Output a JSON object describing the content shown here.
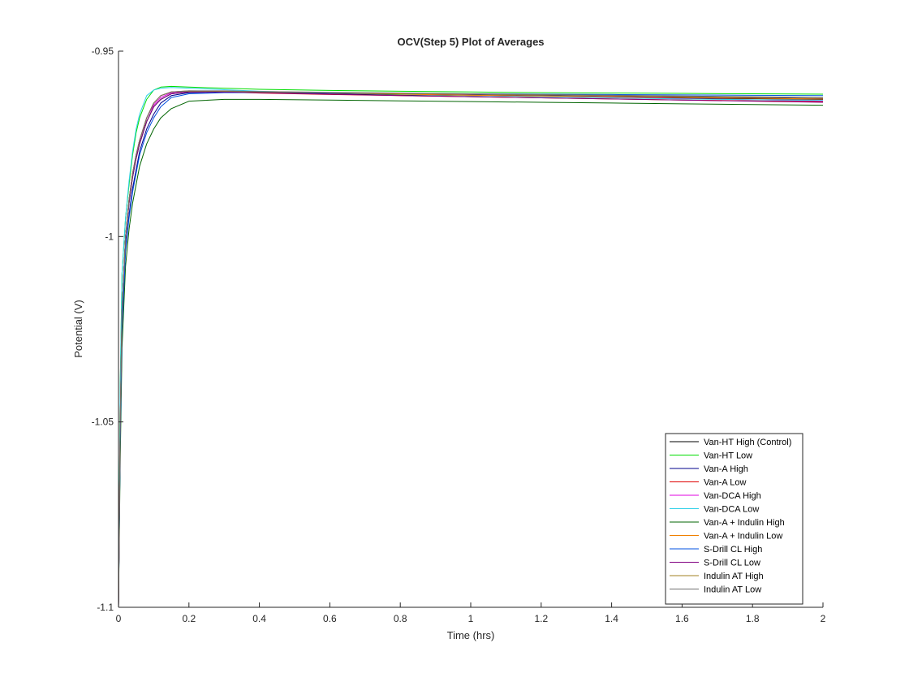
{
  "chart_data": {
    "type": "line",
    "title": "OCV(Step 5) Plot of Averages",
    "xlabel": "Time (hrs)",
    "ylabel": "Potential (V)",
    "xlim": [
      0,
      2
    ],
    "ylim": [
      -1.1,
      -0.95
    ],
    "x_ticks": [
      0,
      0.2,
      0.4,
      0.6,
      0.8,
      1,
      1.2,
      1.4,
      1.6,
      1.8,
      2
    ],
    "x_tick_labels": [
      "0",
      "0.2",
      "0.4",
      "0.6",
      "0.8",
      "1",
      "1.2",
      "1.4",
      "1.6",
      "1.8",
      "2"
    ],
    "y_ticks": [
      -1.1,
      -1.05,
      -1,
      -0.95
    ],
    "y_tick_labels": [
      "-1.1",
      "-1.05",
      "-1",
      "-0.95"
    ],
    "grid": false,
    "legend_position": "bottom-right",
    "x": [
      0,
      0.005,
      0.01,
      0.02,
      0.03,
      0.04,
      0.05,
      0.06,
      0.08,
      0.1,
      0.12,
      0.15,
      0.2,
      0.3,
      0.4,
      0.6,
      0.8,
      1.0,
      1.2,
      1.4,
      1.6,
      1.8,
      2.0
    ],
    "series": [
      {
        "name": "Van-HT High (Control)",
        "color": "#000000",
        "values": [
          -1.1,
          -1.05,
          -1.02,
          -1.0,
          -0.991,
          -0.984,
          -0.979,
          -0.975,
          -0.969,
          -0.965,
          -0.963,
          -0.9615,
          -0.961,
          -0.961,
          -0.9612,
          -0.9615,
          -0.9618,
          -0.962,
          -0.9622,
          -0.9625,
          -0.9627,
          -0.9628,
          -0.963
        ]
      },
      {
        "name": "Van-HT Low",
        "color": "#00dd00",
        "values": [
          -1.1,
          -1.04,
          -1.01,
          -0.995,
          -0.986,
          -0.978,
          -0.972,
          -0.968,
          -0.963,
          -0.9605,
          -0.9597,
          -0.9595,
          -0.9597,
          -0.96,
          -0.9603,
          -0.9606,
          -0.9608,
          -0.961,
          -0.9612,
          -0.9613,
          -0.9614,
          -0.9615,
          -0.9616
        ]
      },
      {
        "name": "Van-A High",
        "color": "#00008b",
        "values": [
          -1.1,
          -1.055,
          -1.025,
          -1.003,
          -0.994,
          -0.987,
          -0.982,
          -0.977,
          -0.971,
          -0.967,
          -0.964,
          -0.962,
          -0.9612,
          -0.961,
          -0.9612,
          -0.9614,
          -0.9616,
          -0.9618,
          -0.962,
          -0.9622,
          -0.9624,
          -0.9626,
          -0.9628
        ]
      },
      {
        "name": "Van-A Low",
        "color": "#e00000",
        "values": [
          -1.1,
          -1.05,
          -1.02,
          -1.0,
          -0.99,
          -0.983,
          -0.978,
          -0.974,
          -0.968,
          -0.964,
          -0.962,
          -0.961,
          -0.9608,
          -0.961,
          -0.9613,
          -0.9617,
          -0.962,
          -0.9623,
          -0.9626,
          -0.9629,
          -0.9632,
          -0.9634,
          -0.9636
        ]
      },
      {
        "name": "Van-DCA High",
        "color": "#e000e0",
        "values": [
          -1.1,
          -1.05,
          -1.02,
          -1.0,
          -0.99,
          -0.983,
          -0.978,
          -0.974,
          -0.968,
          -0.9645,
          -0.9625,
          -0.9612,
          -0.9608,
          -0.9608,
          -0.961,
          -0.9613,
          -0.9616,
          -0.9619,
          -0.9622,
          -0.9625,
          -0.9628,
          -0.9631,
          -0.9634
        ]
      },
      {
        "name": "Van-DCA Low",
        "color": "#30d0e8",
        "values": [
          -1.1,
          -1.04,
          -1.01,
          -0.995,
          -0.985,
          -0.977,
          -0.971,
          -0.967,
          -0.962,
          -0.9605,
          -0.96,
          -0.9598,
          -0.96,
          -0.9604,
          -0.9608,
          -0.9613,
          -0.9617,
          -0.962,
          -0.9623,
          -0.9626,
          -0.9629,
          -0.9631,
          -0.9633
        ]
      },
      {
        "name": "Van-A + Indulin High",
        "color": "#006400",
        "values": [
          -1.1,
          -1.06,
          -1.03,
          -1.008,
          -0.998,
          -0.991,
          -0.986,
          -0.981,
          -0.975,
          -0.971,
          -0.968,
          -0.9655,
          -0.9635,
          -0.963,
          -0.963,
          -0.9632,
          -0.9634,
          -0.9636,
          -0.9638,
          -0.964,
          -0.9642,
          -0.9644,
          -0.9646
        ]
      },
      {
        "name": "Van-A + Indulin Low",
        "color": "#f08000",
        "values": [
          -1.1,
          -1.05,
          -1.02,
          -1.0,
          -0.99,
          -0.983,
          -0.978,
          -0.974,
          -0.968,
          -0.964,
          -0.962,
          -0.961,
          -0.9607,
          -0.9608,
          -0.961,
          -0.9613,
          -0.9616,
          -0.9619,
          -0.9621,
          -0.9623,
          -0.9625,
          -0.9627,
          -0.9629
        ]
      },
      {
        "name": "S-Drill CL High",
        "color": "#0050e0",
        "values": [
          -1.1,
          -1.055,
          -1.025,
          -1.004,
          -0.995,
          -0.988,
          -0.983,
          -0.978,
          -0.972,
          -0.968,
          -0.965,
          -0.9625,
          -0.9615,
          -0.9612,
          -0.9612,
          -0.9613,
          -0.9614,
          -0.9615,
          -0.9616,
          -0.9617,
          -0.9618,
          -0.9619,
          -0.962
        ]
      },
      {
        "name": "S-Drill CL Low",
        "color": "#800080",
        "values": [
          -1.1,
          -1.05,
          -1.02,
          -1.0,
          -0.991,
          -0.984,
          -0.979,
          -0.975,
          -0.969,
          -0.965,
          -0.963,
          -0.9615,
          -0.961,
          -0.961,
          -0.9612,
          -0.9616,
          -0.962,
          -0.9623,
          -0.9626,
          -0.9629,
          -0.9632,
          -0.9635,
          -0.9638
        ]
      },
      {
        "name": "Indulin AT High",
        "color": "#a08020",
        "values": [
          -1.1,
          -1.05,
          -1.02,
          -1.0,
          -0.99,
          -0.983,
          -0.978,
          -0.974,
          -0.968,
          -0.964,
          -0.962,
          -0.961,
          -0.9608,
          -0.9608,
          -0.961,
          -0.9612,
          -0.9614,
          -0.9616,
          -0.9618,
          -0.962,
          -0.9622,
          -0.9624,
          -0.9626
        ]
      },
      {
        "name": "Indulin AT Low",
        "color": "#707070",
        "values": [
          -1.1,
          -1.05,
          -1.02,
          -1.0,
          -0.99,
          -0.983,
          -0.978,
          -0.974,
          -0.968,
          -0.964,
          -0.962,
          -0.961,
          -0.9607,
          -0.9607,
          -0.9609,
          -0.9611,
          -0.9613,
          -0.9615,
          -0.9617,
          -0.9619,
          -0.9621,
          -0.9623,
          -0.9625
        ]
      }
    ]
  }
}
